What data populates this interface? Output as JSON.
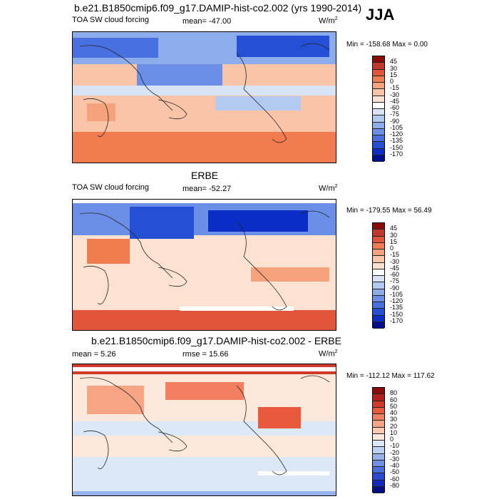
{
  "season": "JJA",
  "panels": [
    {
      "title": "b.e21.B1850cmip6.f09_g17.DAMIP-hist-co2.002 (yrs 1990-2014)",
      "left_label": "TOA SW cloud forcing",
      "mean_label": "mean= -47.00",
      "units_label": "W/m",
      "units_sup": "2",
      "minmax": "Min = -158.68 Max =   0.00",
      "colorbar_labels": [
        "45",
        "30",
        "15",
        "0",
        "-15",
        "-30",
        "-45",
        "-60",
        "-75",
        "-90",
        "-105",
        "-120",
        "-135",
        "-150",
        "-170"
      ],
      "colorbar_colors": [
        "#8b0a0a",
        "#c0392b",
        "#e2553a",
        "#f17c4f",
        "#f6a27c",
        "#fac4a8",
        "#fde2d2",
        "#ffffff",
        "#d8e3f5",
        "#b2c9f0",
        "#8caceb",
        "#6b8fe6",
        "#4870e0",
        "#2550d6",
        "#0a2ec6",
        "#020e8c"
      ]
    },
    {
      "title": "ERBE",
      "left_label": "TOA SW cloud forcing",
      "mean_label": "mean= -52.27",
      "units_label": "W/m",
      "units_sup": "2",
      "minmax": "Min = -179.55 Max =  56.49",
      "colorbar_labels": [
        "45",
        "30",
        "15",
        "0",
        "-15",
        "-30",
        "-45",
        "-60",
        "-75",
        "-90",
        "-105",
        "-120",
        "-135",
        "-150",
        "-170"
      ],
      "colorbar_colors": [
        "#8b0a0a",
        "#c0392b",
        "#e2553a",
        "#f17c4f",
        "#f6a27c",
        "#fac4a8",
        "#fde2d2",
        "#ffffff",
        "#d8e3f5",
        "#b2c9f0",
        "#8caceb",
        "#6b8fe6",
        "#4870e0",
        "#2550d6",
        "#0a2ec6",
        "#020e8c"
      ]
    },
    {
      "title": "b.e21.B1850cmip6.f09_g17.DAMIP-hist-co2.002 - ERBE",
      "left_label": "mean =   5.26",
      "mean_label": "rmse =  15.66",
      "units_label": "W/m",
      "units_sup": "2",
      "minmax": "Min = -112.12 Max = 117.62",
      "colorbar_labels": [
        "80",
        "60",
        "50",
        "40",
        "30",
        "20",
        "10",
        "0",
        "-10",
        "-20",
        "-30",
        "-40",
        "-50",
        "-60",
        "-80"
      ],
      "colorbar_colors": [
        "#8b0a0a",
        "#b3211a",
        "#d23a28",
        "#e8593e",
        "#f27f5f",
        "#f7a584",
        "#fbcab0",
        "#fde8dc",
        "#dde8f7",
        "#bcd0f1",
        "#96b2ea",
        "#6f91e3",
        "#4a6fdc",
        "#2a4cd2",
        "#1028bc",
        "#030d86"
      ]
    }
  ]
}
